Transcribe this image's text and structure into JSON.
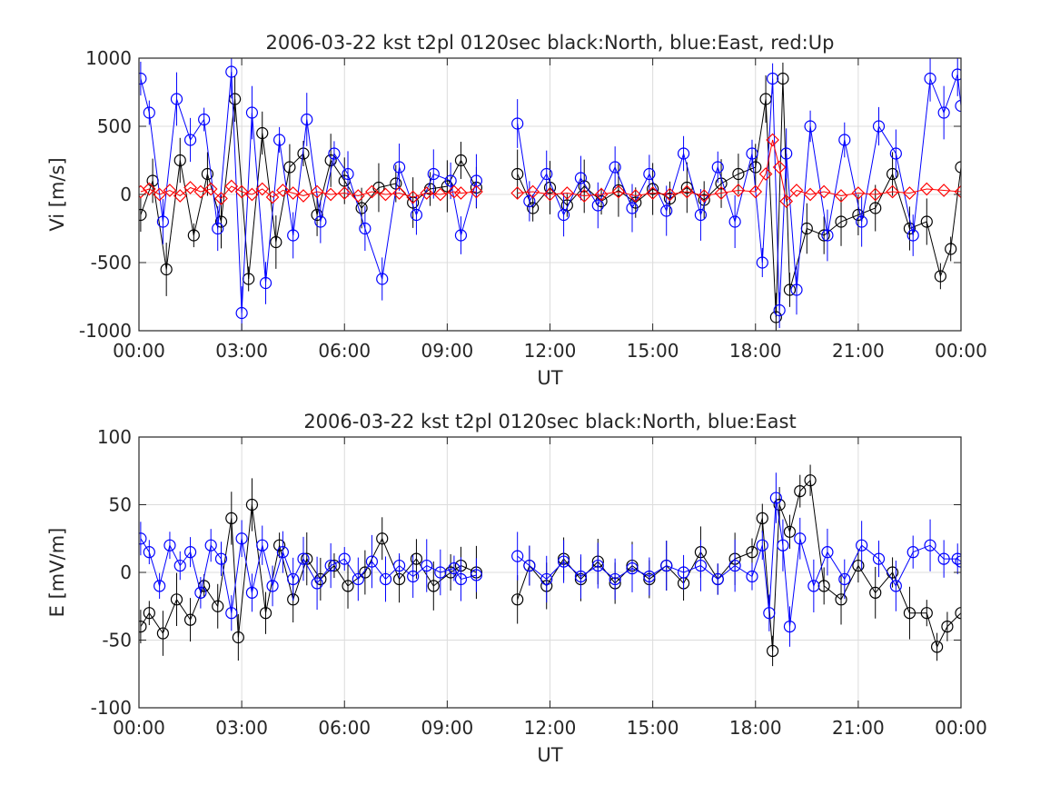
{
  "chart_data": [
    {
      "type": "scatter",
      "title": "2006-03-22 kst t2pl 0120sec black:North, blue:East, red:Up",
      "xlabel": "UT",
      "ylabel": "Vi [m/s]",
      "xlim_hours": [
        0,
        24
      ],
      "ylim": [
        -1000,
        1000
      ],
      "xticks": [
        "00:00",
        "03:00",
        "06:00",
        "09:00",
        "12:00",
        "15:00",
        "18:00",
        "21:00",
        "00:00"
      ],
      "xtick_hours": [
        0,
        3,
        6,
        9,
        12,
        15,
        18,
        21,
        24
      ],
      "yticks": [
        1000,
        500,
        0,
        -500,
        -1000
      ],
      "ytick_labels": [
        "1000",
        "500",
        "0",
        "-500",
        "-1000"
      ],
      "grid": true,
      "series": [
        {
          "name": "North",
          "color": "#000000",
          "marker": "circle",
          "error_bars": true,
          "segments": [
            {
              "x": [
                0.05,
                0.4,
                0.8,
                1.2,
                1.6,
                2.0,
                2.4,
                2.8,
                3.2,
                3.6,
                4.0,
                4.4,
                4.8,
                5.2,
                5.6,
                6.0,
                6.5,
                7.0,
                7.5,
                8.0,
                8.5,
                9.0,
                9.4,
                9.85
              ],
              "y": [
                -150,
                100,
                -550,
                250,
                -300,
                150,
                -200,
                700,
                -620,
                450,
                -350,
                200,
                300,
                -150,
                250,
                100,
                -100,
                50,
                80,
                -60,
                40,
                60,
                250,
                50
              ]
            },
            {
              "x": [
                11.05,
                11.5,
                12.0,
                12.5,
                13.0,
                13.5,
                14.0,
                14.5,
                15.0,
                15.5,
                16.0,
                16.5,
                17.0,
                17.5,
                18.0,
                18.3,
                18.6,
                18.8,
                19.0,
                19.5,
                20.0,
                20.5,
                21.0,
                21.5,
                22.0,
                22.5,
                23.0,
                23.4,
                23.7,
                24.0
              ],
              "y": [
                150,
                -100,
                50,
                -80,
                60,
                -50,
                30,
                -60,
                40,
                -30,
                50,
                -40,
                80,
                150,
                200,
                700,
                -900,
                850,
                -700,
                -250,
                -300,
                -200,
                -150,
                -100,
                150,
                -250,
                -200,
                -600,
                -400,
                200
              ]
            }
          ]
        },
        {
          "name": "East",
          "color": "#0000ff",
          "marker": "circle",
          "error_bars": true,
          "segments": [
            {
              "x": [
                0.05,
                0.3,
                0.7,
                1.1,
                1.5,
                1.9,
                2.3,
                2.7,
                3.0,
                3.3,
                3.7,
                4.1,
                4.5,
                4.9,
                5.3,
                5.7,
                6.1,
                6.6,
                7.1,
                7.6,
                8.1,
                8.6,
                9.1,
                9.4,
                9.85
              ],
              "y": [
                850,
                600,
                -200,
                700,
                400,
                550,
                -250,
                900,
                -870,
                600,
                -650,
                400,
                -300,
                550,
                -200,
                300,
                150,
                -250,
                -620,
                200,
                -150,
                150,
                100,
                -300,
                100
              ]
            },
            {
              "x": [
                11.05,
                11.4,
                11.9,
                12.4,
                12.9,
                13.4,
                13.9,
                14.4,
                14.9,
                15.4,
                15.9,
                16.4,
                16.9,
                17.4,
                17.9,
                18.2,
                18.5,
                18.7,
                18.9,
                19.2,
                19.6,
                20.1,
                20.6,
                21.1,
                21.6,
                22.1,
                22.6,
                23.1,
                23.5,
                23.9,
                24.0
              ],
              "y": [
                520,
                -50,
                150,
                -150,
                120,
                -80,
                200,
                -100,
                150,
                -120,
                300,
                -150,
                200,
                -200,
                300,
                -500,
                850,
                -850,
                300,
                -700,
                500,
                -300,
                400,
                -200,
                500,
                300,
                -300,
                850,
                600,
                880,
                650
              ]
            }
          ]
        },
        {
          "name": "Up",
          "color": "#ff0000",
          "marker": "diamond",
          "error_bars": false,
          "segments": [
            {
              "x": [
                0.05,
                0.3,
                0.6,
                0.9,
                1.2,
                1.5,
                1.8,
                2.1,
                2.4,
                2.7,
                3.0,
                3.3,
                3.6,
                3.9,
                4.2,
                4.5,
                4.8,
                5.2,
                5.6,
                6.0,
                6.4,
                6.8,
                7.2,
                7.6,
                8.0,
                8.4,
                8.8,
                9.2,
                9.4,
                9.85
              ],
              "y": [
                20,
                40,
                0,
                30,
                -10,
                50,
                20,
                40,
                -30,
                60,
                20,
                0,
                40,
                -20,
                30,
                10,
                -10,
                20,
                0,
                10,
                -10,
                20,
                0,
                10,
                -20,
                10,
                0,
                20,
                10,
                20
              ]
            },
            {
              "x": [
                11.05,
                11.5,
                12.0,
                12.5,
                13.0,
                13.5,
                14.0,
                14.5,
                15.0,
                15.5,
                16.0,
                16.5,
                17.0,
                17.5,
                18.0,
                18.3,
                18.5,
                18.7,
                18.9,
                19.2,
                19.6,
                20.0,
                20.5,
                21.0,
                21.5,
                22.0,
                22.5,
                23.0,
                23.5,
                24.0
              ],
              "y": [
                10,
                20,
                0,
                10,
                -10,
                0,
                20,
                -10,
                10,
                0,
                20,
                -10,
                10,
                30,
                20,
                150,
                400,
                200,
                -50,
                30,
                0,
                20,
                -10,
                10,
                0,
                20,
                10,
                40,
                30,
                20
              ]
            }
          ]
        }
      ]
    },
    {
      "type": "scatter",
      "title": "2006-03-22 kst t2pl 0120sec black:North, blue:East",
      "xlabel": "UT",
      "ylabel": "E [mV/m]",
      "xlim_hours": [
        0,
        24
      ],
      "ylim": [
        -100,
        100
      ],
      "xticks": [
        "00:00",
        "03:00",
        "06:00",
        "09:00",
        "12:00",
        "15:00",
        "18:00",
        "21:00",
        "00:00"
      ],
      "xtick_hours": [
        0,
        3,
        6,
        9,
        12,
        15,
        18,
        21,
        24
      ],
      "yticks": [
        100,
        50,
        0,
        -50,
        -100
      ],
      "ytick_labels": [
        "100",
        "50",
        "0",
        "-50",
        "-100"
      ],
      "grid": true,
      "series": [
        {
          "name": "North",
          "color": "#000000",
          "marker": "circle",
          "error_bars": true,
          "segments": [
            {
              "x": [
                0.05,
                0.3,
                0.7,
                1.1,
                1.5,
                1.9,
                2.3,
                2.7,
                2.9,
                3.3,
                3.7,
                4.1,
                4.5,
                4.9,
                5.3,
                5.7,
                6.1,
                6.6,
                7.1,
                7.6,
                8.1,
                8.6,
                9.1,
                9.4,
                9.85
              ],
              "y": [
                -40,
                -30,
                -45,
                -20,
                -35,
                -10,
                -25,
                40,
                -48,
                50,
                -30,
                20,
                -20,
                10,
                -5,
                5,
                -10,
                0,
                25,
                -5,
                10,
                -10,
                0,
                5,
                0
              ]
            },
            {
              "x": [
                11.05,
                11.4,
                11.9,
                12.4,
                12.9,
                13.4,
                13.9,
                14.4,
                14.9,
                15.4,
                15.9,
                16.4,
                16.9,
                17.4,
                17.9,
                18.2,
                18.5,
                18.7,
                19.0,
                19.3,
                19.6,
                20.0,
                20.5,
                21.0,
                21.5,
                22.0,
                22.5,
                23.0,
                23.3,
                23.6,
                24.0
              ],
              "y": [
                -20,
                5,
                -10,
                10,
                -5,
                8,
                -8,
                5,
                -5,
                5,
                -8,
                15,
                -5,
                10,
                15,
                40,
                -58,
                50,
                30,
                60,
                68,
                -10,
                -20,
                5,
                -15,
                0,
                -30,
                -30,
                -55,
                -40,
                -30
              ]
            }
          ]
        },
        {
          "name": "East",
          "color": "#0000ff",
          "marker": "circle",
          "error_bars": true,
          "segments": [
            {
              "x": [
                0.05,
                0.3,
                0.6,
                0.9,
                1.2,
                1.5,
                1.8,
                2.1,
                2.4,
                2.7,
                3.0,
                3.3,
                3.6,
                3.9,
                4.2,
                4.5,
                4.8,
                5.2,
                5.6,
                6.0,
                6.4,
                6.8,
                7.2,
                7.6,
                8.0,
                8.4,
                8.8,
                9.2,
                9.4,
                9.85
              ],
              "y": [
                25,
                15,
                -10,
                20,
                5,
                15,
                -15,
                20,
                10,
                -30,
                25,
                -15,
                20,
                -10,
                15,
                -5,
                10,
                -8,
                5,
                10,
                -5,
                8,
                -5,
                5,
                -3,
                5,
                0,
                3,
                -5,
                -2
              ]
            },
            {
              "x": [
                11.05,
                11.4,
                11.9,
                12.4,
                12.9,
                13.4,
                13.9,
                14.4,
                14.9,
                15.4,
                15.9,
                16.4,
                16.9,
                17.4,
                17.9,
                18.2,
                18.4,
                18.6,
                18.8,
                19.0,
                19.3,
                19.7,
                20.1,
                20.6,
                21.1,
                21.6,
                22.1,
                22.6,
                23.1,
                23.5,
                23.9,
                24.0
              ],
              "y": [
                12,
                5,
                -5,
                8,
                -3,
                5,
                -5,
                3,
                -3,
                5,
                0,
                5,
                -5,
                5,
                -3,
                20,
                -30,
                55,
                20,
                -40,
                25,
                -10,
                15,
                -5,
                20,
                10,
                -10,
                15,
                20,
                10,
                10,
                8
              ]
            }
          ]
        }
      ]
    }
  ]
}
